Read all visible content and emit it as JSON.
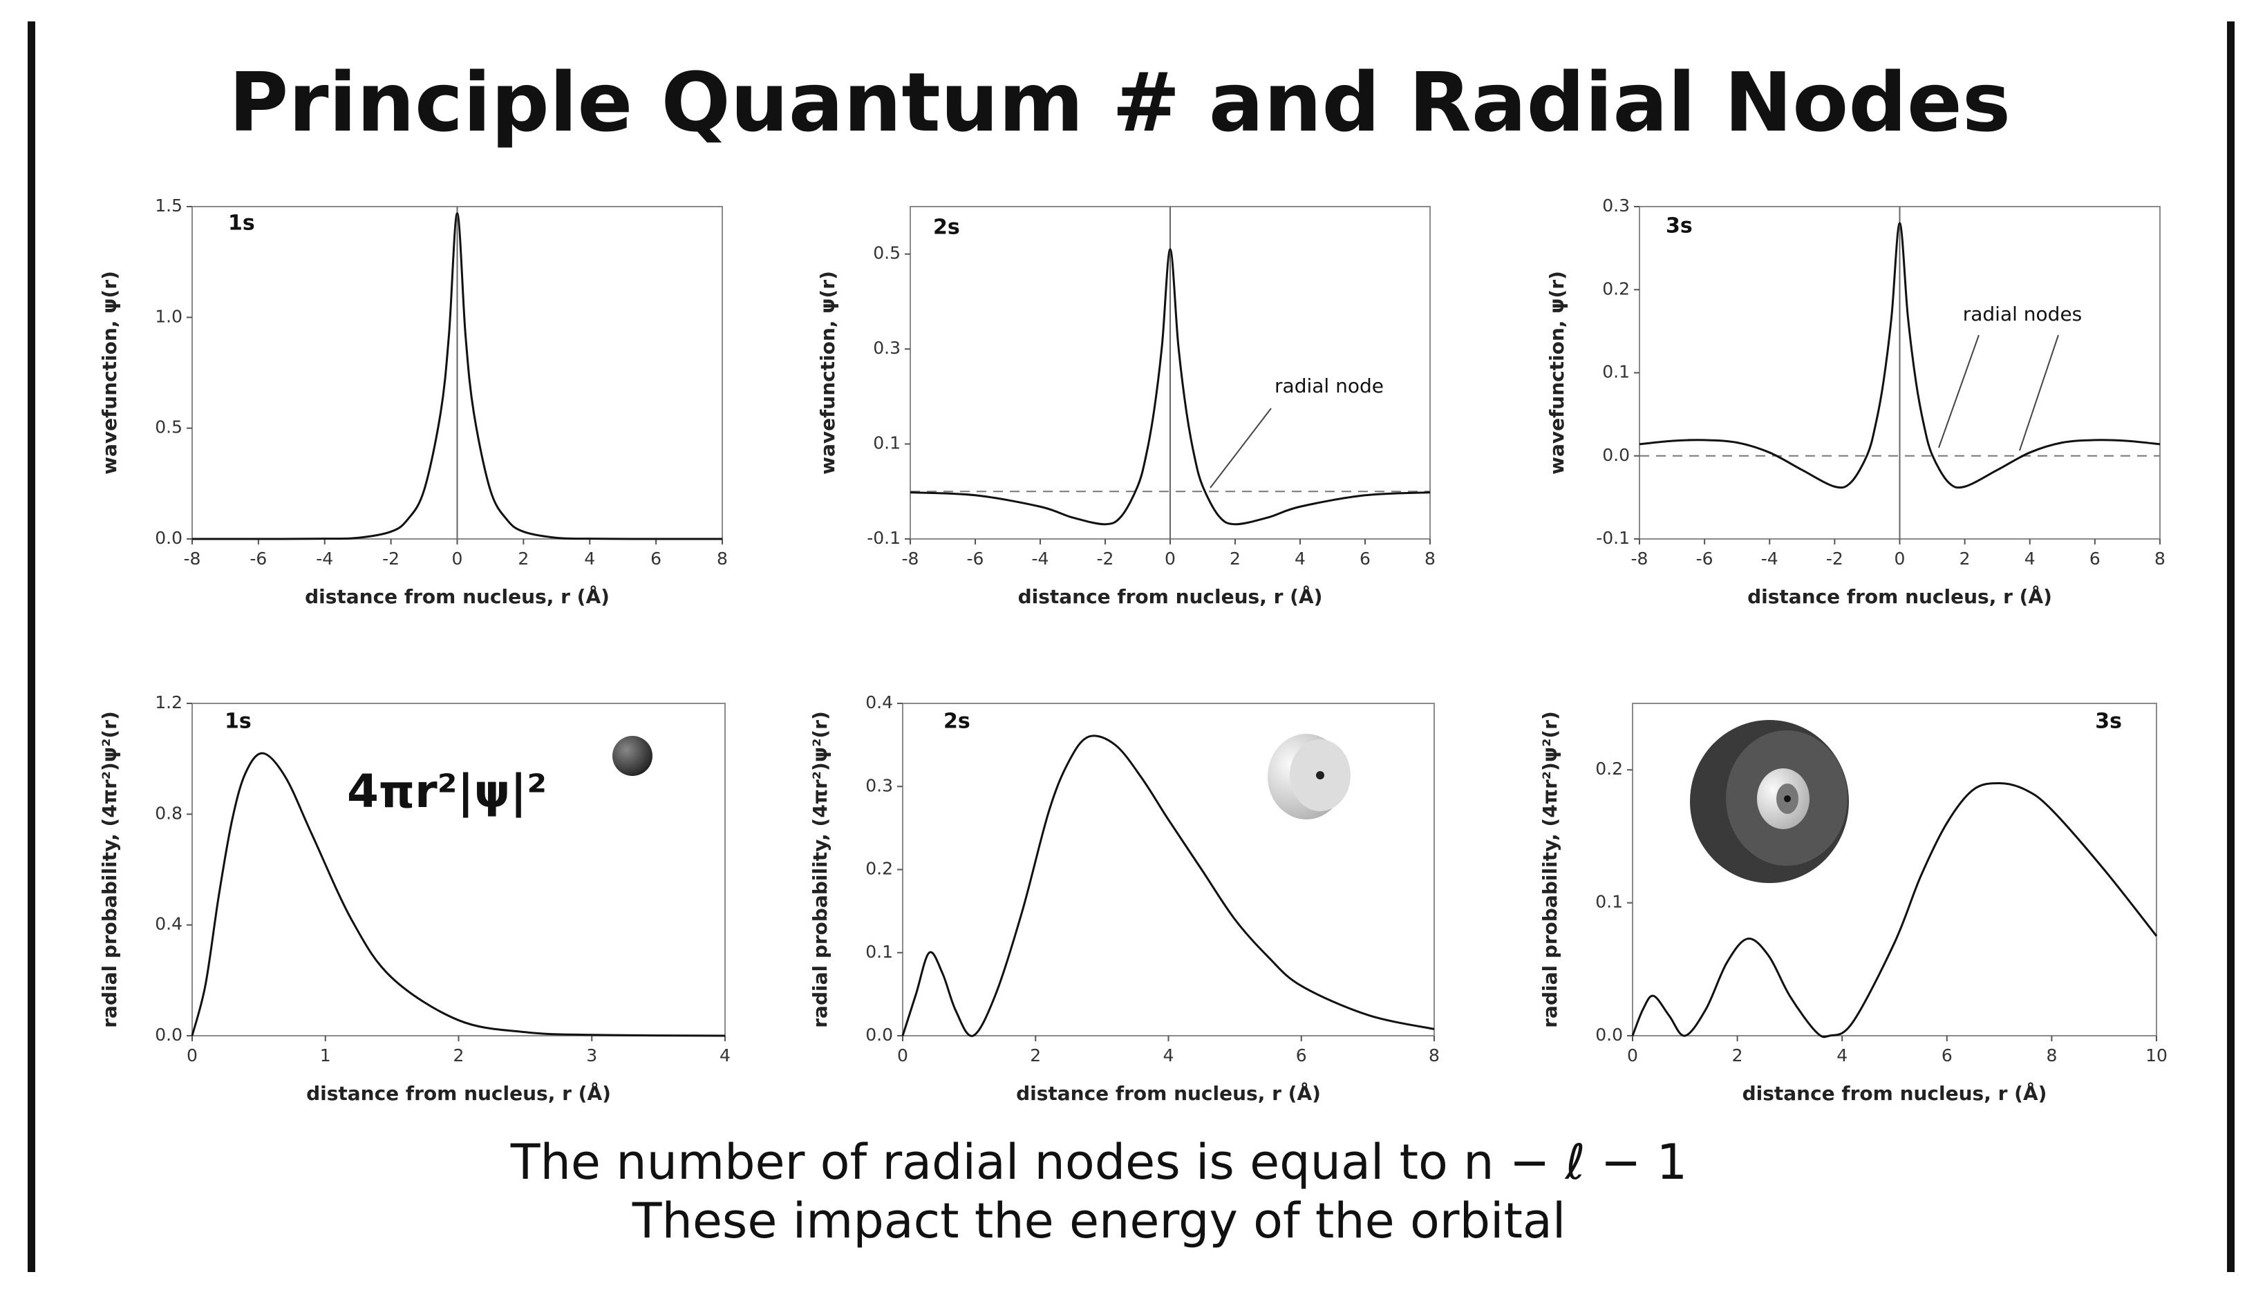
{
  "title": "Principle Quantum # and Radial Nodes",
  "footer": [
    "The number of radial nodes is equal to n − ℓ − 1",
    "These impact the energy of the orbital"
  ],
  "chart_data": [
    {
      "type": "line",
      "label": "1s",
      "y_label": "wavefunction, ψ(r)",
      "x_label": "distance from nucleus, r (Å)",
      "color": "#111",
      "x": [
        -8,
        -6,
        -4,
        -3,
        -2,
        -1.5,
        -1,
        -0.5,
        -0.25,
        0,
        0.25,
        0.5,
        1,
        1.5,
        2,
        3,
        4,
        6,
        8
      ],
      "values": [
        0,
        0,
        0.001,
        0.005,
        0.033,
        0.087,
        0.22,
        0.57,
        0.92,
        1.47,
        0.92,
        0.57,
        0.22,
        0.087,
        0.033,
        0.005,
        0.001,
        0,
        0
      ],
      "xlim": [
        -8,
        8
      ],
      "xticks": [
        -8,
        -6,
        -4,
        -2,
        0,
        2,
        4,
        6,
        8
      ],
      "ylim": [
        0,
        1.5
      ],
      "yticks": [
        {
          "value": 0,
          "label": "0.0"
        },
        0.5,
        {
          "value": 1,
          "label": "1.0"
        },
        1.5
      ]
    },
    {
      "type": "line",
      "label": "2s",
      "y_label": "wavefunction, ψ(r)",
      "x_label": "distance from nucleus, r (Å)",
      "color": "#111",
      "annotation": "radial node",
      "x": [
        -8,
        -6,
        -4,
        -3,
        -2,
        -1.5,
        -1,
        -0.75,
        -0.5,
        -0.25,
        0,
        0.25,
        0.5,
        0.75,
        1,
        1.5,
        2,
        3,
        4,
        6,
        8
      ],
      "values": [
        -0.002,
        -0.008,
        -0.032,
        -0.055,
        -0.069,
        -0.052,
        0.011,
        0.073,
        0.168,
        0.308,
        0.51,
        0.308,
        0.168,
        0.073,
        0.011,
        -0.052,
        -0.069,
        -0.055,
        -0.032,
        -0.008,
        -0.002
      ],
      "xlim": [
        -8,
        8
      ],
      "xticks": [
        -8,
        -6,
        -4,
        -2,
        0,
        2,
        4,
        6,
        8
      ],
      "ylim": [
        -0.1,
        0.6
      ],
      "yticks": [
        -0.1,
        0.1,
        0.3,
        0.5
      ]
    },
    {
      "type": "line",
      "label": "3s",
      "y_label": "wavefunction, ψ(r)",
      "x_label": "distance from nucleus, r (Å)",
      "color": "#111",
      "annotation": "radial nodes",
      "x": [
        -8,
        -7,
        -6,
        -5,
        -4,
        -3,
        -2,
        -1.5,
        -1,
        -0.75,
        -0.5,
        -0.25,
        0,
        0.25,
        0.5,
        0.75,
        1,
        1.5,
        2,
        3,
        4,
        5,
        6,
        7,
        8
      ],
      "values": [
        0.014,
        0.018,
        0.019,
        0.016,
        0.004,
        -0.017,
        -0.037,
        -0.032,
        0.001,
        0.036,
        0.089,
        0.168,
        0.28,
        0.168,
        0.089,
        0.036,
        0.001,
        -0.032,
        -0.037,
        -0.017,
        0.004,
        0.016,
        0.019,
        0.018,
        0.014
      ],
      "xlim": [
        -8,
        8
      ],
      "xticks": [
        -8,
        -6,
        -4,
        -2,
        0,
        2,
        4,
        6,
        8
      ],
      "ylim": [
        -0.1,
        0.3
      ],
      "yticks": [
        -0.1,
        {
          "value": 0,
          "label": "0.0"
        },
        0.1,
        0.2,
        0.3
      ]
    },
    {
      "type": "line",
      "label": "1s",
      "y_label": "radial probability, (4πr²)ψ²(r)",
      "x_label": "distance from nucleus, r (Å)",
      "color": "#111",
      "annotation": "4πr²|ψ|²",
      "x": [
        0,
        0.1,
        0.2,
        0.3,
        0.4,
        0.53,
        0.7,
        0.9,
        1.2,
        1.5,
        2,
        2.5,
        3,
        4
      ],
      "values": [
        0,
        0.184,
        0.506,
        0.779,
        0.948,
        1.02,
        0.934,
        0.726,
        0.416,
        0.209,
        0.056,
        0.013,
        0.003,
        0
      ],
      "xlim": [
        0,
        4
      ],
      "xticks": [
        0,
        1,
        2,
        3,
        4
      ],
      "ylim": [
        0,
        1.2
      ],
      "yticks": [
        {
          "value": 0,
          "label": "0.0"
        },
        0.4,
        0.8,
        1.2
      ]
    },
    {
      "type": "line",
      "label": "2s",
      "y_label": "radial probability, (4πr²)ψ²(r)",
      "x_label": "distance from nucleus, r (Å)",
      "color": "#111",
      "x": [
        0,
        0.2,
        0.4,
        0.6,
        0.8,
        1.06,
        1.4,
        1.8,
        2.2,
        2.5,
        2.8,
        3.2,
        3.6,
        4,
        4.5,
        5,
        5.5,
        6,
        7,
        8
      ],
      "values": [
        0,
        0.05,
        0.1,
        0.075,
        0.03,
        0,
        0.05,
        0.15,
        0.27,
        0.33,
        0.36,
        0.35,
        0.31,
        0.26,
        0.2,
        0.14,
        0.095,
        0.06,
        0.025,
        0.008
      ],
      "xlim": [
        0,
        8
      ],
      "xticks": [
        0,
        2,
        4,
        6,
        8
      ],
      "ylim": [
        0,
        0.4
      ],
      "yticks": [
        {
          "value": 0,
          "label": "0.0"
        },
        0.1,
        0.2,
        0.3,
        0.4
      ]
    },
    {
      "type": "line",
      "label": "3s",
      "y_label": "radial probability, (4πr²)ψ²(r)",
      "x_label": "distance from nucleus, r (Å)",
      "color": "#111",
      "x": [
        0,
        0.2,
        0.4,
        0.7,
        1,
        1.4,
        1.8,
        2.2,
        2.6,
        3,
        3.5,
        3.76,
        4.2,
        5,
        5.5,
        6,
        6.5,
        7,
        7.5,
        8,
        9,
        10
      ],
      "values": [
        0,
        0.02,
        0.03,
        0.015,
        0,
        0.02,
        0.055,
        0.073,
        0.06,
        0.03,
        0.003,
        0,
        0.01,
        0.07,
        0.12,
        0.16,
        0.185,
        0.19,
        0.185,
        0.17,
        0.125,
        0.075
      ],
      "xlim": [
        0,
        10
      ],
      "xticks": [
        0,
        2,
        4,
        6,
        8,
        10
      ],
      "ylim": [
        0,
        0.25
      ],
      "yticks": [
        {
          "value": 0,
          "label": "0.0"
        },
        0.1,
        0.2
      ]
    }
  ]
}
